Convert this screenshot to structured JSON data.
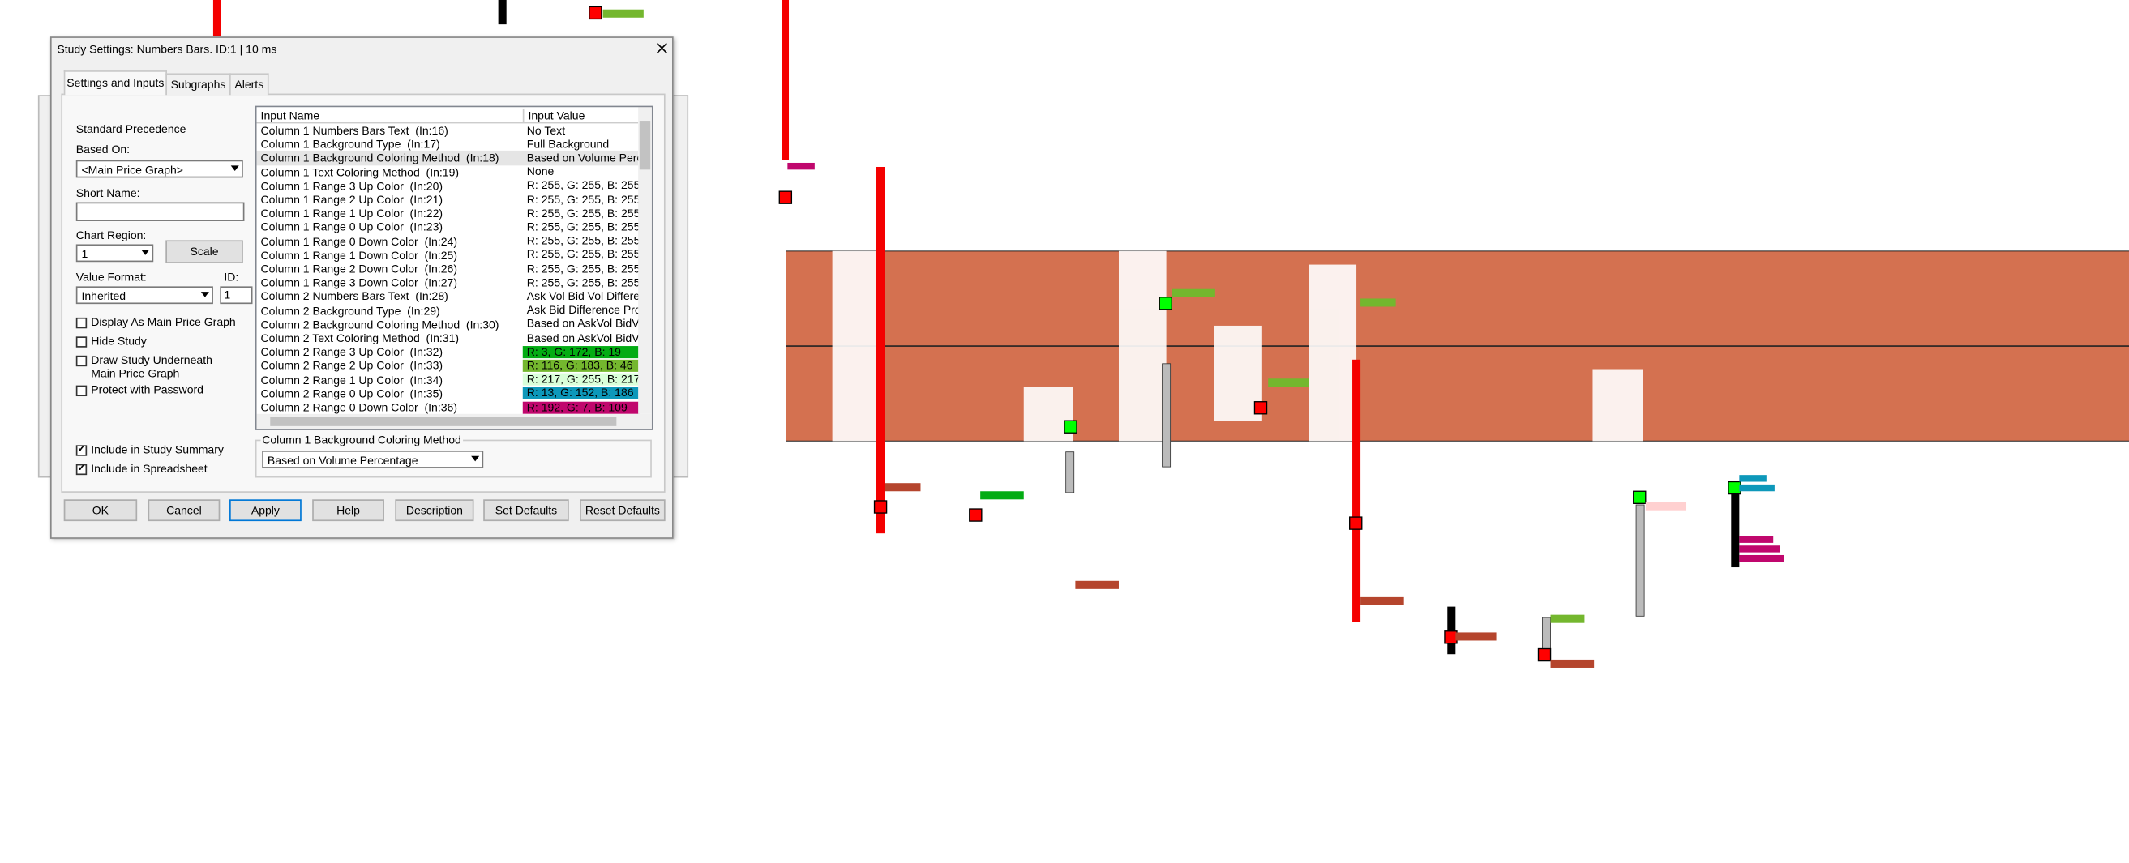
{
  "dialog": {
    "title": "Study Settings: Numbers Bars. ID:1 | 10 ms",
    "tabs": [
      "Settings and Inputs",
      "Subgraphs",
      "Alerts"
    ],
    "standard_precedence": "Standard Precedence",
    "based_on": {
      "label": "Based On:",
      "value": "<Main Price Graph>"
    },
    "short_name": {
      "label": "Short Name:"
    },
    "chart_region": {
      "label": "Chart Region:",
      "value": "1",
      "button": "Scale"
    },
    "value_format": {
      "label": "Value Format:",
      "value": "Inherited"
    },
    "id": {
      "label": "ID:",
      "value": "1"
    },
    "checkboxes": [
      {
        "label": "Display As Main Price Graph",
        "checked": false
      },
      {
        "label": "Hide Study",
        "checked": false
      },
      {
        "label": "Draw Study Underneath Main Price Graph",
        "checked": false
      },
      {
        "label": "Protect with Password",
        "checked": false
      },
      {
        "label": "Include in Study Summary",
        "checked": true
      },
      {
        "label": "Include in Spreadsheet",
        "checked": true
      }
    ],
    "inputs": {
      "headers": [
        "Input Name",
        "Input Value"
      ],
      "rows": [
        {
          "name": "Column 1 Numbers Bars Text  (In:16)",
          "value": "No Text"
        },
        {
          "name": "Column 1 Background Type  (In:17)",
          "value": "Full Background"
        },
        {
          "name": "Column 1 Background Coloring Method  (In:18)",
          "value": "Based on Volume Perc.",
          "selected": true
        },
        {
          "name": "Column 1 Text Coloring Method  (In:19)",
          "value": "None"
        },
        {
          "name": "Column 1 Range 3 Up Color  (In:20)",
          "value": "R: 255, G: 255, B: 255"
        },
        {
          "name": "Column 1 Range 2 Up Color  (In:21)",
          "value": "R: 255, G: 255, B: 255"
        },
        {
          "name": "Column 1 Range 1 Up Color  (In:22)",
          "value": "R: 255, G: 255, B: 255"
        },
        {
          "name": "Column 1 Range 0 Up Color  (In:23)",
          "value": "R: 255, G: 255, B: 255"
        },
        {
          "name": "Column 1 Range 0 Down Color  (In:24)",
          "value": "R: 255, G: 255, B: 255"
        },
        {
          "name": "Column 1 Range 1 Down Color  (In:25)",
          "value": "R: 255, G: 255, B: 255"
        },
        {
          "name": "Column 1 Range 2 Down Color  (In:26)",
          "value": "R: 255, G: 255, B: 255"
        },
        {
          "name": "Column 1 Range 3 Down Color  (In:27)",
          "value": "R: 255, G: 255, B: 255"
        },
        {
          "name": "Column 2 Numbers Bars Text  (In:28)",
          "value": "Ask Vol Bid Vol Differe.."
        },
        {
          "name": "Column 2 Background Type  (In:29)",
          "value": "Ask Bid Difference Profi"
        },
        {
          "name": "Column 2 Background Coloring Method  (In:30)",
          "value": "Based on AskVol BidV."
        },
        {
          "name": "Column 2 Text Coloring Method  (In:31)",
          "value": "Based on AskVol BidV."
        },
        {
          "name": "Column 2 Range 3 Up Color  (In:32)",
          "value": "R: 3, G: 172, B: 19",
          "color": "#03ac13"
        },
        {
          "name": "Column 2 Range 2 Up Color  (In:33)",
          "value": "R: 116, G: 183, B: 46",
          "color": "#74b72e"
        },
        {
          "name": "Column 2 Range 1 Up Color  (In:34)",
          "value": "R: 217, G: 255, B: 217",
          "color": "#d9ffd9"
        },
        {
          "name": "Column 2 Range 0 Up Color  (In:35)",
          "value": "R: 13, G: 152, B: 186",
          "color": "#0d98ba"
        },
        {
          "name": "Column 2 Range 0 Down Color  (In:36)",
          "value": "R: 192, G: 7, B: 109",
          "color": "#c0076d"
        }
      ]
    },
    "coloring_group": {
      "label": "Column 1 Background Coloring Method",
      "value": "Based on Volume Percentage"
    },
    "buttons": [
      "OK",
      "Cancel",
      "Apply",
      "Help",
      "Description",
      "Set Defaults",
      "Reset Defaults"
    ]
  }
}
